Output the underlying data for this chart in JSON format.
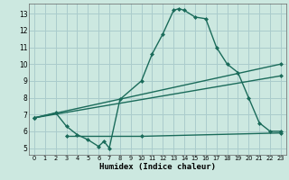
{
  "xlabel": "Humidex (Indice chaleur)",
  "xlim": [
    -0.5,
    23.5
  ],
  "ylim": [
    4.6,
    13.6
  ],
  "yticks": [
    5,
    6,
    7,
    8,
    9,
    10,
    11,
    12,
    13
  ],
  "xticks": [
    0,
    1,
    2,
    3,
    4,
    5,
    6,
    7,
    8,
    9,
    10,
    11,
    12,
    13,
    14,
    15,
    16,
    17,
    18,
    19,
    20,
    21,
    22,
    23
  ],
  "bg_color": "#cce8e0",
  "grid_color": "#aacccc",
  "line_color": "#1a6b5a",
  "line_width": 1.0,
  "marker": "D",
  "marker_size": 2.0,
  "lines": [
    {
      "x": [
        0,
        2,
        3,
        4,
        5,
        6,
        6.5,
        7,
        8,
        10,
        11,
        12,
        13,
        13.5,
        14,
        15,
        16,
        17,
        18,
        19,
        20,
        21,
        22,
        23
      ],
      "y": [
        6.8,
        7.1,
        6.3,
        5.8,
        5.5,
        5.1,
        5.4,
        5.0,
        7.9,
        9.0,
        10.6,
        11.8,
        13.2,
        13.3,
        13.2,
        12.8,
        12.7,
        11.0,
        10.0,
        9.5,
        8.0,
        6.5,
        6.0,
        6.0
      ]
    },
    {
      "x": [
        0,
        23
      ],
      "y": [
        6.8,
        10.0
      ]
    },
    {
      "x": [
        0,
        23
      ],
      "y": [
        6.8,
        9.3
      ]
    },
    {
      "x": [
        3,
        10,
        23
      ],
      "y": [
        5.7,
        5.7,
        5.9
      ]
    }
  ]
}
